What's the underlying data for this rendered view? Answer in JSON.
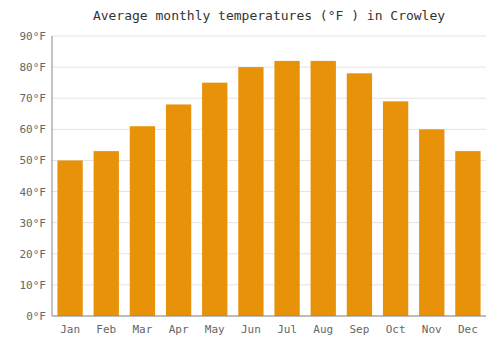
{
  "chart_data": {
    "type": "bar",
    "title": "Average monthly temperatures (°F ) in Crowley",
    "categories": [
      "Jan",
      "Feb",
      "Mar",
      "Apr",
      "May",
      "Jun",
      "Jul",
      "Aug",
      "Sep",
      "Oct",
      "Nov",
      "Dec"
    ],
    "values": [
      50,
      53,
      61,
      68,
      75,
      80,
      82,
      82,
      78,
      69,
      60,
      53
    ],
    "color": "#E8920A",
    "ylim": [
      0,
      90
    ],
    "yticks": [
      {
        "value": 0,
        "label": "0°F"
      },
      {
        "value": 10,
        "label": "10°F"
      },
      {
        "value": 20,
        "label": "20°F"
      },
      {
        "value": 30,
        "label": "30°F"
      },
      {
        "value": 40,
        "label": "40°F"
      },
      {
        "value": 50,
        "label": "50°F"
      },
      {
        "value": 60,
        "label": "60°F"
      },
      {
        "value": 70,
        "label": "70°F"
      },
      {
        "value": 80,
        "label": "80°F"
      },
      {
        "value": 90,
        "label": "90°F"
      }
    ],
    "grid": true
  }
}
